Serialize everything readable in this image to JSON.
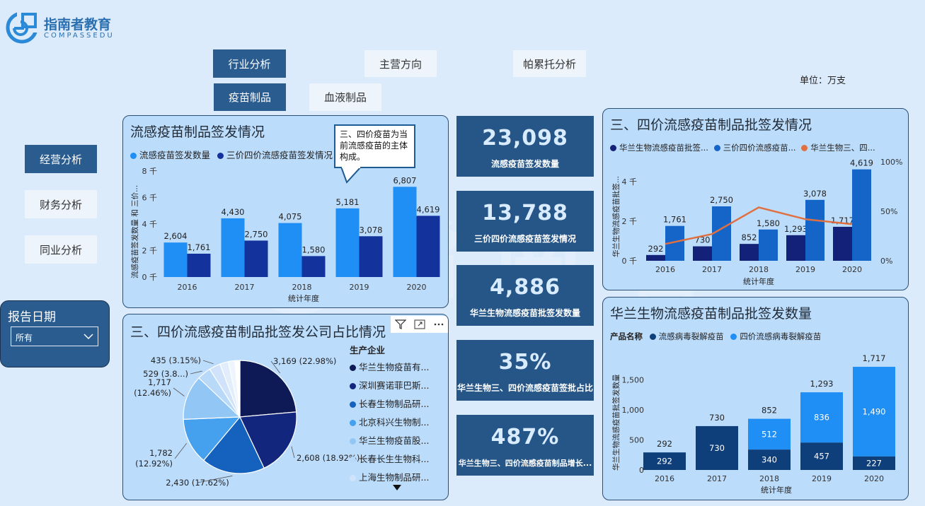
{
  "brand": {
    "name": "指南者教育",
    "sub": "COMPASSEDU"
  },
  "nav_top": [
    {
      "label": "行业分析",
      "active": true
    },
    {
      "label": "主营方向",
      "active": false
    },
    {
      "label": "帕累托分析",
      "active": false
    }
  ],
  "nav_sub": [
    {
      "label": "疫苗制品",
      "active": true
    },
    {
      "label": "血液制品",
      "active": false
    }
  ],
  "nav_side": [
    {
      "label": "经营分析",
      "active": true
    },
    {
      "label": "财务分析",
      "active": false
    },
    {
      "label": "同业分析",
      "active": false
    }
  ],
  "unit": "单位：万支",
  "report_date": {
    "label": "报告日期",
    "value": "所有"
  },
  "kpis": [
    {
      "value": "23,098",
      "label": "流感疫苗签发数量"
    },
    {
      "value": "13,788",
      "label": "三价四价流感疫苗签发情况"
    },
    {
      "value": "4,886",
      "label": "华兰生物流感疫苗批签发数量"
    },
    {
      "value": "35%",
      "label": "华兰生物三、四价流感疫苗签批占比"
    },
    {
      "value": "487%",
      "label": "华兰生物三、四价流感疫苗制品增长..."
    }
  ],
  "chart1": {
    "title": "流感疫苗制品签发情况",
    "tooltip": "三、四价疫苗为当前流感疫苗的主体构成。",
    "chart_data": {
      "type": "bar",
      "categories": [
        "2016",
        "2017",
        "2018",
        "2019",
        "2020"
      ],
      "series": [
        {
          "name": "流感疫苗签发数量",
          "values": [
            2604,
            4430,
            4075,
            5181,
            6807
          ],
          "color": "#1f8ef5"
        },
        {
          "name": "三价四价流感疫苗签发情况",
          "values": [
            1761,
            2750,
            1580,
            3078,
            4619
          ],
          "color": "#13329c"
        }
      ],
      "xlabel": "统计年度",
      "ylabel": "流感疫苗签发数量 和 三价...",
      "ylim": [
        0,
        8000
      ],
      "yticks": [
        "0 千",
        "2 千",
        "4 千",
        "6 千",
        "8 千"
      ]
    }
  },
  "chart2": {
    "title": "三、四价流感疫苗制品批签发情况",
    "chart_data": {
      "type": "bar",
      "categories": [
        "2016",
        "2017",
        "2018",
        "2019",
        "2020"
      ],
      "series": [
        {
          "name": "华兰生物流感疫苗批签...",
          "values": [
            292,
            730,
            852,
            1293,
            1717
          ],
          "color": "#142178"
        },
        {
          "name": "三价四价流感疫苗...",
          "values": [
            1761,
            2750,
            1580,
            3078,
            4619
          ],
          "color": "#1565c8"
        },
        {
          "name": "华兰生物三、四...",
          "values": [
            17,
            27,
            54,
            42,
            37
          ],
          "color": "#e07040"
        }
      ],
      "xlabel": "统计年度",
      "ylabel": "华兰生物流感疫苗批签...",
      "ylim": [
        0,
        5000
      ],
      "yticks": [
        "0 千",
        "2 千",
        "4 千"
      ],
      "y2ticks": [
        "0%",
        "50%",
        "100%"
      ]
    }
  },
  "chart3": {
    "title": "三、四价流感疫苗制品批签发公司占比情况",
    "legend_title": "生产企业",
    "chart_data": {
      "type": "pie",
      "slices": [
        {
          "name": "华兰生物疫苗有...",
          "value": 3169,
          "label": "3,169 (22.98%)",
          "color": "#0e1a55"
        },
        {
          "name": "深圳赛诺菲巴斯...",
          "value": 2608,
          "label": "2,608 (18.92%)",
          "color": "#12267e"
        },
        {
          "name": "长春生物制品研...",
          "value": 2430,
          "label": "2,430 (17.62%)",
          "color": "#1561be"
        },
        {
          "name": "北京科兴生物制...",
          "value": 1782,
          "label": "1,782 (12.92%)",
          "color": "#45a0ee"
        },
        {
          "name": "华兰生物疫苗股...",
          "value": 1717,
          "label": "1,717 (12.46%)",
          "color": "#92c6f5"
        },
        {
          "name": "长春长生生物科...",
          "value": 529,
          "label": "529 (3.8...)",
          "color": "#b8d9f8"
        },
        {
          "name": "上海生物制品研...",
          "value": 435,
          "label": "435 (3.15%)",
          "color": "#d0e3fa"
        },
        {
          "name": "",
          "value": 330,
          "label": "",
          "color": "#e2edfb"
        },
        {
          "name": "",
          "value": 250,
          "label": "",
          "color": "#eff5fd"
        },
        {
          "name": "",
          "value": 190,
          "label": "",
          "color": "#ffffff"
        }
      ]
    }
  },
  "chart4": {
    "title": "华兰生物流感疫苗制品批签发数量",
    "legend_title": "产品名称",
    "chart_data": {
      "type": "bar",
      "categories": [
        "2016",
        "2017",
        "2018",
        "2019",
        "2020"
      ],
      "series": [
        {
          "name": "流感病毒裂解疫苗",
          "values": [
            292,
            730,
            340,
            457,
            227
          ],
          "color": "#0f3f7a"
        },
        {
          "name": "四价流感病毒裂解疫苗",
          "values": [
            0,
            0,
            512,
            836,
            1490
          ],
          "color": "#1f8ef5"
        }
      ],
      "totals": [
        292,
        730,
        852,
        1293,
        1717
      ],
      "xlabel": "统计年度",
      "ylabel": "华兰生物流感疫苗批签发数量",
      "ylim": [
        0,
        2000
      ],
      "yticks": [
        "0",
        "500",
        "1,000",
        "1,500"
      ]
    }
  }
}
